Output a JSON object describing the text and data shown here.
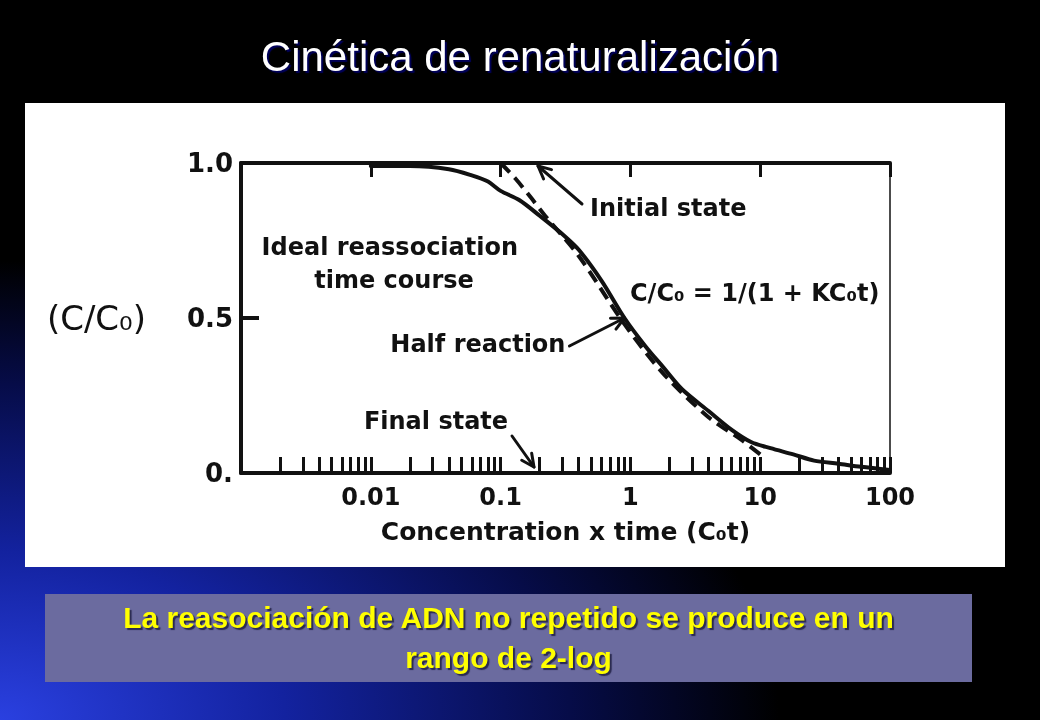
{
  "chart_data": {
    "type": "line",
    "title": "Cinética de renaturalización",
    "xlabel": "Concentration x time (C₀t)",
    "ylabel": "(C/C₀)",
    "log": "x",
    "xlim": [
      0.001,
      100
    ],
    "ylim": [
      0,
      1
    ],
    "xticks": [
      {
        "value": 0.002,
        "label": null
      },
      {
        "value": 0.003,
        "label": null
      },
      {
        "value": 0.004,
        "label": null
      },
      {
        "value": 0.005,
        "label": null
      },
      {
        "value": 0.006,
        "label": null
      },
      {
        "value": 0.007,
        "label": null
      },
      {
        "value": 0.008,
        "label": null
      },
      {
        "value": 0.009,
        "label": null
      },
      0.01,
      {
        "value": 0.02,
        "label": null
      },
      {
        "value": 0.03,
        "label": null
      },
      {
        "value": 0.04,
        "label": null
      },
      {
        "value": 0.05,
        "label": null
      },
      {
        "value": 0.06,
        "label": null
      },
      {
        "value": 0.07,
        "label": null
      },
      {
        "value": 0.08,
        "label": null
      },
      {
        "value": 0.09,
        "label": null
      },
      0.1,
      {
        "value": 0.2,
        "label": null
      },
      {
        "value": 0.3,
        "label": null
      },
      {
        "value": 0.4,
        "label": null
      },
      {
        "value": 0.5,
        "label": null
      },
      {
        "value": 0.6,
        "label": null
      },
      {
        "value": 0.7,
        "label": null
      },
      {
        "value": 0.8,
        "label": null
      },
      {
        "value": 0.9,
        "label": null
      },
      1,
      {
        "value": 2,
        "label": null
      },
      {
        "value": 3,
        "label": null
      },
      {
        "value": 4,
        "label": null
      },
      {
        "value": 5,
        "label": null
      },
      {
        "value": 6,
        "label": null
      },
      {
        "value": 7,
        "label": null
      },
      {
        "value": 8,
        "label": null
      },
      {
        "value": 9,
        "label": null
      },
      10,
      {
        "value": 20,
        "label": null
      },
      {
        "value": 30,
        "label": null
      },
      {
        "value": 40,
        "label": null
      },
      {
        "value": 50,
        "label": null
      },
      {
        "value": 60,
        "label": null
      },
      {
        "value": 70,
        "label": null
      },
      {
        "value": 80,
        "label": null
      },
      {
        "value": 90,
        "label": null
      },
      100
    ],
    "yticks": [
      {
        "value": 0,
        "label": "0."
      },
      0.5,
      {
        "value": 1,
        "label": "1.0"
      }
    ],
    "grid": false,
    "marker": "none",
    "line_style": "solid",
    "series": [
      {
        "color": "#111111",
        "x": [
          0.01,
          0.02,
          0.04,
          0.06,
          0.08,
          0.1,
          0.14,
          0.2,
          0.3,
          0.4,
          0.6,
          0.9,
          1.3,
          1.8,
          2.5,
          4,
          6,
          8.5,
          12,
          18,
          26,
          40,
          60,
          100
        ],
        "values": [
          0.99,
          0.99,
          0.98,
          0.96,
          0.94,
          0.91,
          0.88,
          0.83,
          0.77,
          0.72,
          0.62,
          0.5,
          0.41,
          0.34,
          0.27,
          0.2,
          0.14,
          0.1,
          0.08,
          0.06,
          0.04,
          0.03,
          0.02,
          0.01
        ]
      },
      {
        "color": "#111111",
        "line_style": "dashed",
        "x": [
          0.1,
          0.13,
          0.17,
          0.22,
          0.4,
          0.9,
          1.8,
          4,
          7,
          10
        ],
        "values": [
          1.0,
          0.95,
          0.89,
          0.83,
          0.7,
          0.48,
          0.32,
          0.18,
          0.11,
          0.06
        ]
      }
    ],
    "annotations": [
      "Ideal reassociation time course",
      "Initial state",
      "C/C₀ = 1/(1 + KC₀t)",
      {
        "text": "Half reaction",
        "x": 0.9,
        "y": 0.5
      },
      "Final state",
      "La reasociación de ADN no repetido se produce en un rango de 2-log"
    ]
  }
}
